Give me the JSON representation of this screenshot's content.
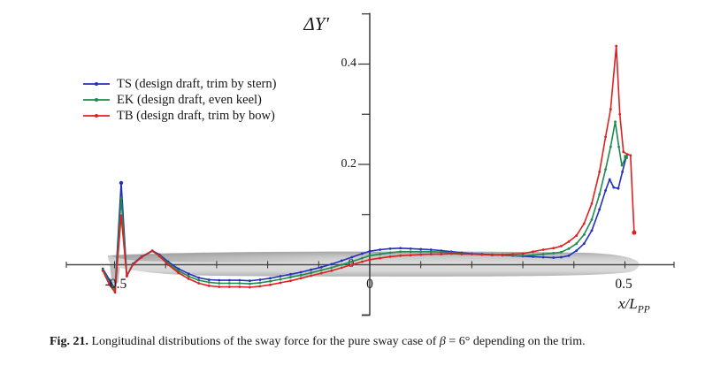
{
  "labels": {
    "y_title": "ΔY′",
    "y_tick_04": "0.4",
    "y_tick_02": "0.2",
    "y_tick_0": "0",
    "x_tick_neg05": "-0.5",
    "x_tick_0": "0",
    "x_tick_05": "0.5",
    "x_label_main": "x/L",
    "x_label_sub": "PP"
  },
  "caption": {
    "label": "Fig. 21.",
    "text_before_beta": "Longitudinal distributions of the sway force for the pure sway case of ",
    "beta": "β",
    "text_after_beta": " = 6° depending on the trim."
  },
  "annotations": {
    "hull": "gray ship hull silhouette drawn along the x-axis from stern (x/Lpp = -0.5) to bow (x/Lpp = 0.5)"
  },
  "chart_data": {
    "type": "line",
    "title": "ΔY′",
    "xlabel": "x/L_PP",
    "ylabel": "ΔY′",
    "xlim": [
      -0.594,
      0.598
    ],
    "ylim": [
      -0.101,
      0.502
    ],
    "grid": false,
    "legend_position": "upper left",
    "x_ticks": [
      -0.5,
      -0.4,
      -0.3,
      -0.2,
      -0.1,
      0,
      0.1,
      0.2,
      0.3,
      0.4,
      0.5
    ],
    "x_tick_labeled": [
      -0.5,
      0,
      0.5
    ],
    "y_ticks": [
      -0.1,
      0.1,
      0.2,
      0.3,
      0.4,
      0.5
    ],
    "y_tick_labeled": [
      0.2,
      0.4
    ],
    "series": [
      {
        "id": "TS",
        "name": "TS (design draft, trim by stern)",
        "color": "#2330bb",
        "x": [
          -0.523,
          -0.51,
          -0.499,
          -0.487,
          -0.476,
          -0.464,
          -0.447,
          -0.426,
          -0.412,
          -0.395,
          -0.375,
          -0.355,
          -0.335,
          -0.315,
          -0.295,
          -0.275,
          -0.255,
          -0.235,
          -0.215,
          -0.195,
          -0.175,
          -0.155,
          -0.135,
          -0.115,
          -0.095,
          -0.075,
          -0.055,
          -0.035,
          -0.015,
          0.0,
          0.02,
          0.04,
          0.06,
          0.08,
          0.1,
          0.12,
          0.14,
          0.16,
          0.18,
          0.2,
          0.22,
          0.24,
          0.26,
          0.28,
          0.3,
          0.32,
          0.34,
          0.36,
          0.375,
          0.39,
          0.405,
          0.42,
          0.435,
          0.45,
          0.462,
          0.47,
          0.478,
          0.487,
          0.495,
          0.502
        ],
        "y": [
          -0.008,
          -0.03,
          -0.048,
          0.163,
          -0.022,
          0.002,
          0.016,
          0.028,
          0.02,
          0.006,
          -0.008,
          -0.018,
          -0.026,
          -0.03,
          -0.031,
          -0.031,
          -0.031,
          -0.032,
          -0.03,
          -0.027,
          -0.023,
          -0.019,
          -0.015,
          -0.01,
          -0.005,
          0.001,
          0.008,
          0.015,
          0.022,
          0.027,
          0.03,
          0.032,
          0.033,
          0.032,
          0.031,
          0.03,
          0.028,
          0.026,
          0.024,
          0.022,
          0.021,
          0.02,
          0.019,
          0.018,
          0.017,
          0.016,
          0.015,
          0.014,
          0.015,
          0.018,
          0.028,
          0.042,
          0.068,
          0.11,
          0.148,
          0.17,
          0.154,
          0.152,
          0.185,
          0.213
        ]
      },
      {
        "id": "EK",
        "name": "EK (design draft, even keel)",
        "color": "#1f8a4d",
        "x": [
          -0.523,
          -0.51,
          -0.499,
          -0.487,
          -0.476,
          -0.464,
          -0.447,
          -0.426,
          -0.412,
          -0.395,
          -0.375,
          -0.355,
          -0.335,
          -0.315,
          -0.295,
          -0.275,
          -0.255,
          -0.235,
          -0.215,
          -0.195,
          -0.175,
          -0.155,
          -0.135,
          -0.115,
          -0.095,
          -0.075,
          -0.055,
          -0.035,
          -0.015,
          0.0,
          0.02,
          0.04,
          0.06,
          0.08,
          0.1,
          0.12,
          0.14,
          0.16,
          0.18,
          0.2,
          0.22,
          0.24,
          0.26,
          0.28,
          0.3,
          0.32,
          0.34,
          0.36,
          0.375,
          0.39,
          0.405,
          0.42,
          0.435,
          0.45,
          0.462,
          0.472,
          0.481,
          0.488,
          0.494,
          0.502
        ],
        "y": [
          -0.01,
          -0.035,
          -0.05,
          0.132,
          -0.022,
          0.001,
          0.015,
          0.027,
          0.018,
          0.003,
          -0.012,
          -0.023,
          -0.031,
          -0.035,
          -0.037,
          -0.037,
          -0.037,
          -0.038,
          -0.036,
          -0.033,
          -0.029,
          -0.025,
          -0.021,
          -0.016,
          -0.011,
          -0.006,
          0.0,
          0.006,
          0.013,
          0.018,
          0.021,
          0.024,
          0.026,
          0.026,
          0.026,
          0.026,
          0.025,
          0.024,
          0.022,
          0.021,
          0.02,
          0.019,
          0.019,
          0.018,
          0.018,
          0.019,
          0.021,
          0.023,
          0.025,
          0.032,
          0.042,
          0.06,
          0.09,
          0.14,
          0.19,
          0.235,
          0.285,
          0.235,
          0.198,
          0.215
        ]
      },
      {
        "id": "TB",
        "name": "TB (design draft, trim by bow)",
        "color": "#e02020",
        "x": [
          -0.523,
          -0.51,
          -0.499,
          -0.487,
          -0.476,
          -0.464,
          -0.447,
          -0.426,
          -0.412,
          -0.395,
          -0.375,
          -0.355,
          -0.335,
          -0.315,
          -0.295,
          -0.275,
          -0.255,
          -0.235,
          -0.215,
          -0.195,
          -0.175,
          -0.155,
          -0.135,
          -0.115,
          -0.095,
          -0.075,
          -0.055,
          -0.035,
          -0.015,
          0.0,
          0.02,
          0.04,
          0.06,
          0.08,
          0.1,
          0.12,
          0.14,
          0.16,
          0.18,
          0.2,
          0.22,
          0.24,
          0.26,
          0.28,
          0.3,
          0.32,
          0.34,
          0.36,
          0.375,
          0.39,
          0.405,
          0.42,
          0.435,
          0.45,
          0.462,
          0.472,
          0.483,
          0.49,
          0.497,
          0.505,
          0.511,
          0.518
        ],
        "y": [
          -0.012,
          -0.04,
          -0.055,
          0.098,
          -0.023,
          0.0,
          0.015,
          0.028,
          0.017,
          0.0,
          -0.016,
          -0.028,
          -0.037,
          -0.042,
          -0.044,
          -0.044,
          -0.044,
          -0.045,
          -0.043,
          -0.04,
          -0.036,
          -0.032,
          -0.027,
          -0.022,
          -0.017,
          -0.012,
          -0.006,
          0.0,
          0.006,
          0.01,
          0.013,
          0.016,
          0.018,
          0.019,
          0.02,
          0.021,
          0.021,
          0.022,
          0.021,
          0.021,
          0.02,
          0.02,
          0.02,
          0.021,
          0.022,
          0.026,
          0.03,
          0.033,
          0.037,
          0.046,
          0.058,
          0.082,
          0.122,
          0.185,
          0.255,
          0.31,
          0.436,
          0.3,
          0.225,
          0.22,
          0.218,
          0.064
        ]
      }
    ]
  }
}
